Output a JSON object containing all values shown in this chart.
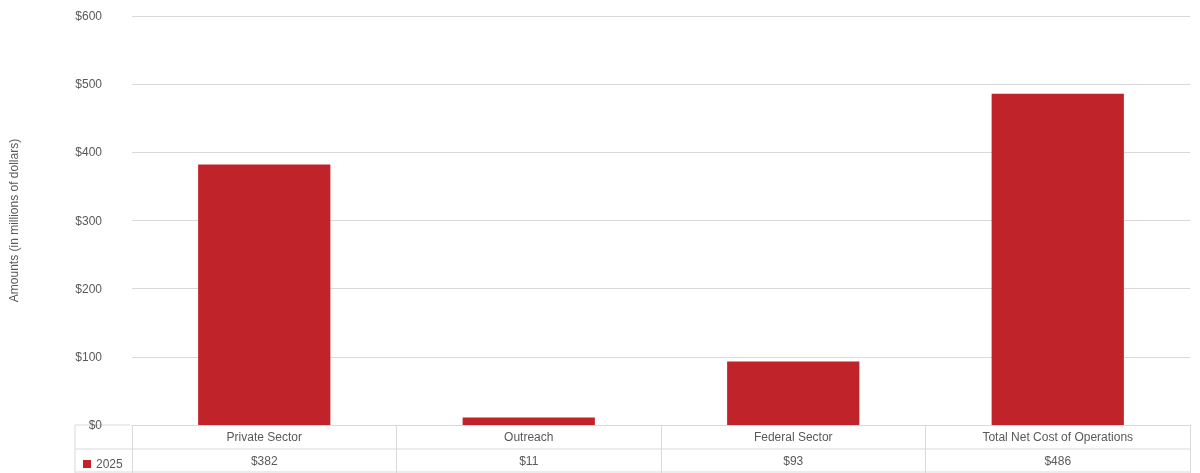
{
  "chart_data": {
    "type": "bar",
    "ylabel": "Amounts (in millions of dollars)",
    "categories": [
      "Private Sector",
      "Outreach",
      "Federal Sector",
      "Total Net Cost of Operations"
    ],
    "series": [
      {
        "name": "2025",
        "color": "#c0232a",
        "values": [
          382,
          11,
          93,
          486
        ],
        "value_labels": [
          "$382",
          "$11",
          "$93",
          "$486"
        ]
      }
    ],
    "ylim": [
      0,
      600
    ],
    "yticks": [
      {
        "value": 0,
        "label": "$0"
      },
      {
        "value": 100,
        "label": "$100"
      },
      {
        "value": 200,
        "label": "$200"
      },
      {
        "value": 300,
        "label": "$300"
      },
      {
        "value": 400,
        "label": "$400"
      },
      {
        "value": 500,
        "label": "$500"
      },
      {
        "value": 600,
        "label": "$600"
      }
    ],
    "grid": "y",
    "legend": "bottom left"
  }
}
